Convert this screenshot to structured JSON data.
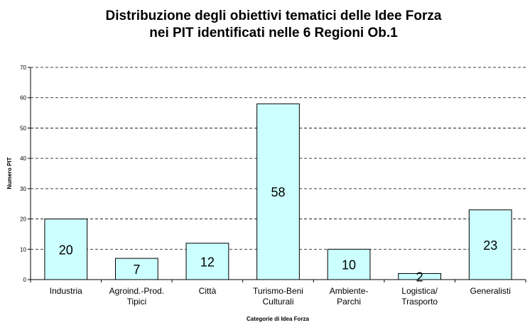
{
  "chart_data": {
    "type": "bar",
    "title": "Distribuzione degli obiettivi tematici delle Idee Forza\nnei PIT identificati nelle 6 Regioni Ob.1",
    "x_label": "Categorie di Idea Forza",
    "y_label": "Numero PIT",
    "categories": [
      "Industria",
      "Agroind.-Prod.\nTipici",
      "Città",
      "Turismo-Beni\nCulturali",
      "Ambiente-\nParchi",
      "Logistica/\nTrasporto",
      "Generalisti"
    ],
    "values": [
      20,
      7,
      12,
      58,
      10,
      2,
      23
    ],
    "color": "#ccffff",
    "ylim": [
      0,
      70
    ],
    "yticks": [
      0,
      10,
      20,
      30,
      40,
      50,
      60,
      70
    ],
    "grid": true,
    "data_labels": true
  }
}
